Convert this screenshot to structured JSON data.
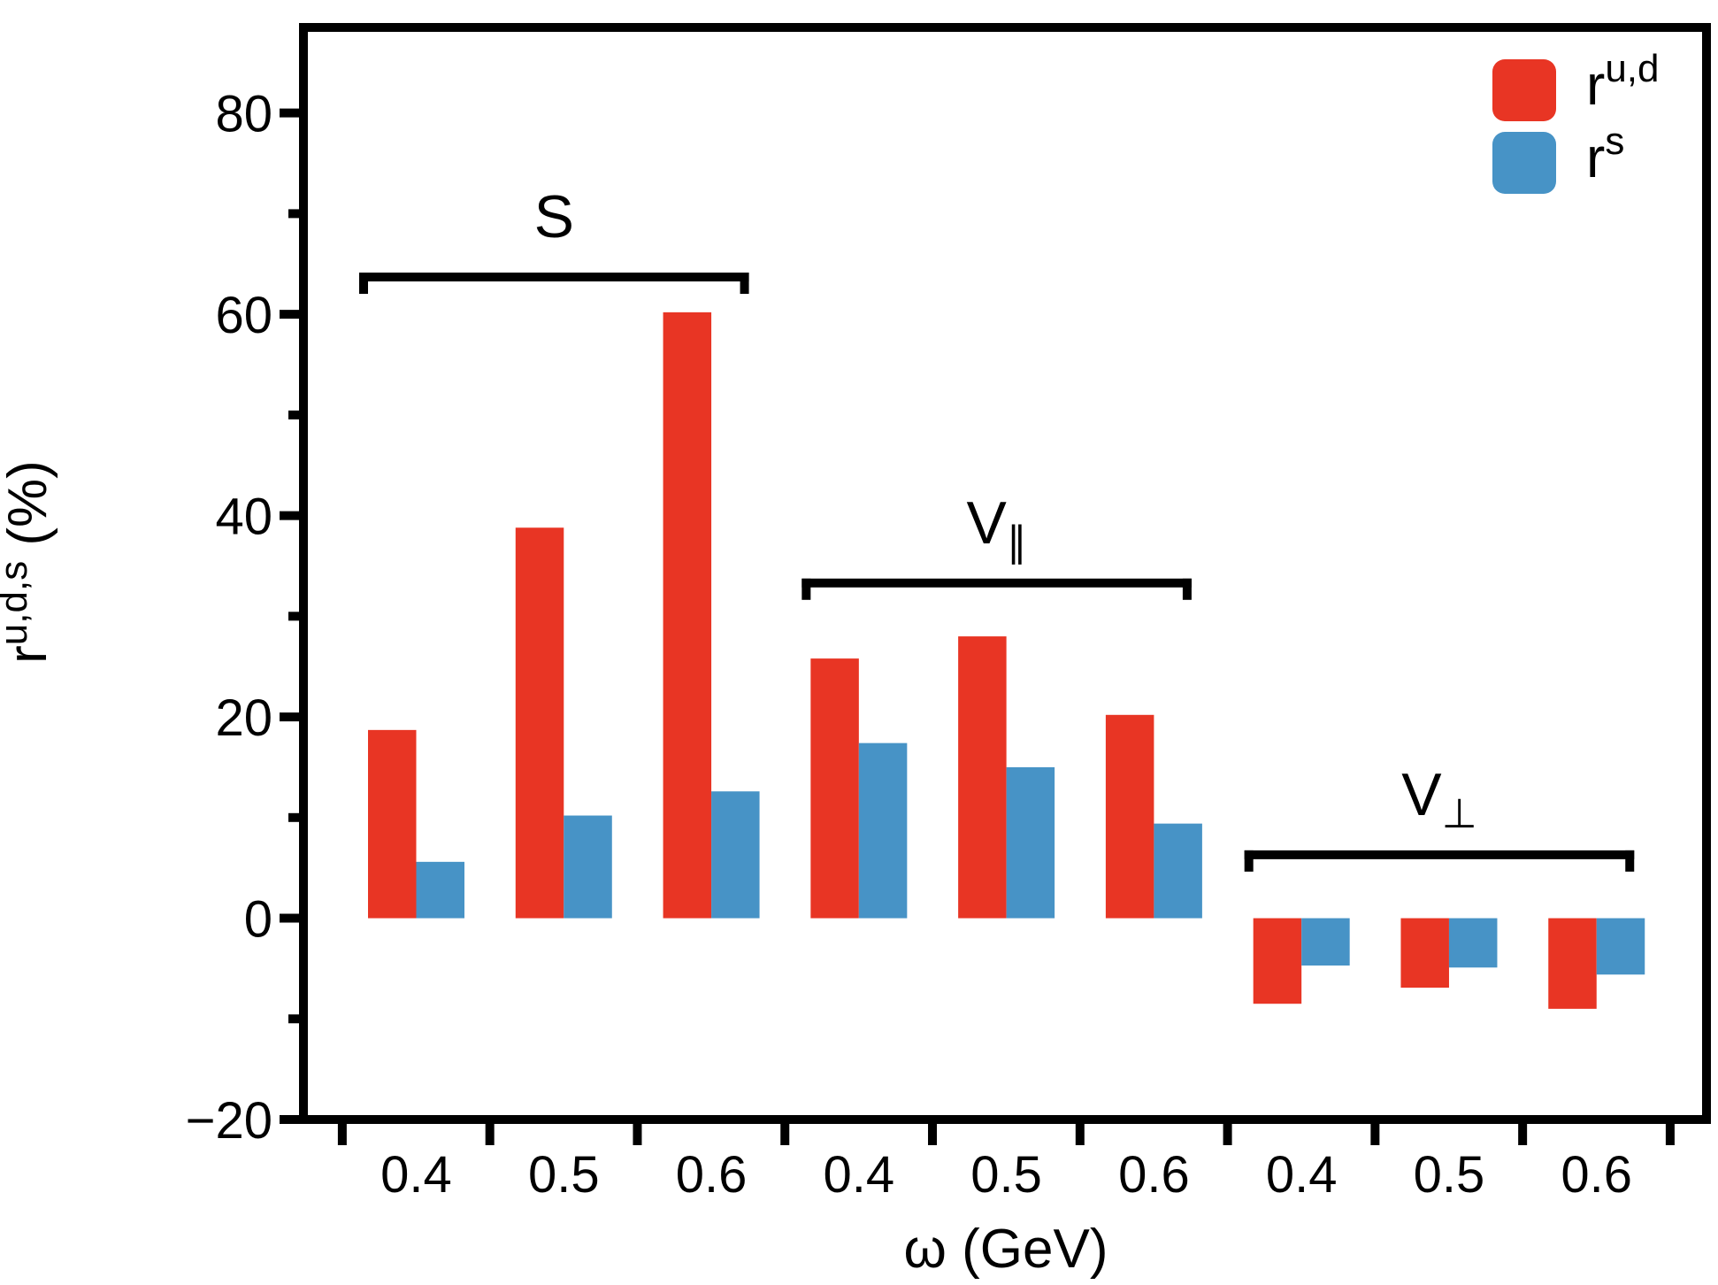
{
  "figure": {
    "background": "#ffffff",
    "description": "Grouped bar chart of flavor decomposition ratios"
  },
  "chart_data": {
    "type": "bar",
    "title": "",
    "xlabel": {
      "symbol": "ω",
      "unit": " (GeV)"
    },
    "ylabel": {
      "base": "r",
      "superscript": "u,d,s",
      "suffix": " (%)"
    },
    "y_axis": {
      "lim": [
        -20,
        88.5
      ],
      "major_ticks": [
        80,
        60,
        40,
        20,
        0,
        -20
      ],
      "major_tick_labels": [
        "80",
        "60",
        "40",
        "20",
        "0",
        "−20"
      ],
      "minor_ticks": [
        70,
        50,
        30,
        10,
        -10
      ]
    },
    "x_tick_labels_per_group": [
      "0.4",
      "0.5",
      "0.6"
    ],
    "groups": [
      {
        "label": "S",
        "label_sub": "",
        "bracket_level": 63.7,
        "categories": [
          "0.4",
          "0.5",
          "0.6"
        ],
        "r_ud": [
          18.7,
          38.8,
          60.2
        ],
        "r_s": [
          5.6,
          10.2,
          12.6
        ]
      },
      {
        "label": "V",
        "label_sub": "∥",
        "bracket_level": 33.3,
        "categories": [
          "0.4",
          "0.5",
          "0.6"
        ],
        "r_ud": [
          25.8,
          28.0,
          20.2
        ],
        "r_s": [
          17.4,
          15.0,
          9.4
        ]
      },
      {
        "label": "V",
        "label_sub": "⊥",
        "bracket_level": 6.3,
        "categories": [
          "0.4",
          "0.5",
          "0.6"
        ],
        "r_ud": [
          -8.5,
          -6.9,
          -9.0
        ],
        "r_s": [
          -4.7,
          -4.9,
          -5.6
        ]
      }
    ],
    "series": [
      {
        "key": "r_ud",
        "name": "r",
        "name_sup": "u,d",
        "color": "#E83524"
      },
      {
        "key": "r_s",
        "name": "r",
        "name_sup": "s",
        "color": "#4793C6"
      }
    ],
    "legend": {
      "position": "upper-right"
    },
    "grid": false,
    "axis_color": "#000000",
    "text_color": "#000000"
  }
}
